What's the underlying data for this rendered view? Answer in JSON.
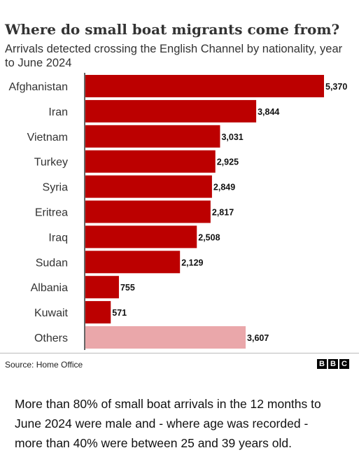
{
  "header": {
    "title": "Where do small boat migrants come from?",
    "subtitle": "Arrivals detected crossing the English Channel by nationality, year to June 2024"
  },
  "colors": {
    "bar": "#bc0000",
    "others_bar": "#eaa7aa",
    "axis": "#333333"
  },
  "chart_data": {
    "type": "bar",
    "orientation": "horizontal",
    "categories": [
      "Afghanistan",
      "Iran",
      "Vietnam",
      "Turkey",
      "Syria",
      "Eritrea",
      "Iraq",
      "Sudan",
      "Albania",
      "Kuwait",
      "Others"
    ],
    "values": [
      5370,
      3844,
      3031,
      2925,
      2849,
      2817,
      2508,
      2129,
      755,
      571,
      3607
    ],
    "data_labels": [
      "5,370",
      "3,844",
      "3,031",
      "2,925",
      "2,849",
      "2,817",
      "2,508",
      "2,129",
      "755",
      "571",
      "3,607"
    ],
    "title": "Where do small boat migrants come from?",
    "subtitle": "Arrivals detected crossing the English Channel by nationality, year to June 2024",
    "xlim": [
      0,
      5370
    ],
    "grid": false,
    "legend": "none"
  },
  "footer": {
    "source": "Source: Home Office",
    "logo_letters": [
      "B",
      "B",
      "C"
    ]
  },
  "caption": "More than 80% of small boat arrivals in the 12 months to June 2024 were male and - where age was recorded - more than 40% were between 25 and 39 years old."
}
